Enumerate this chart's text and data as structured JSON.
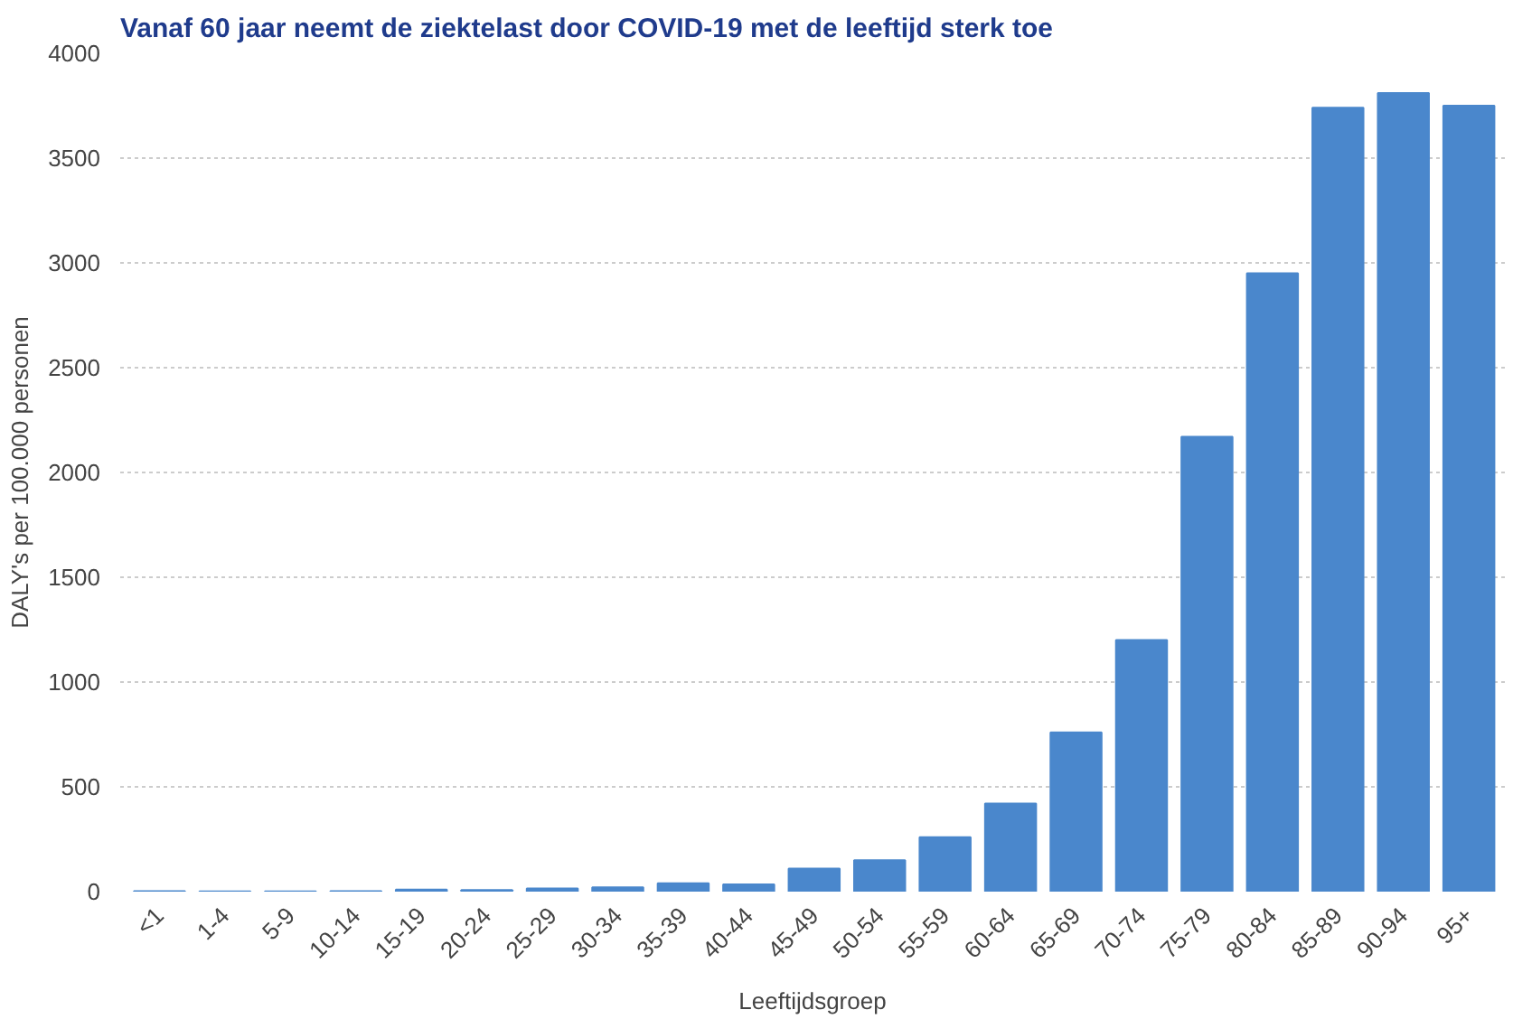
{
  "chart_data": {
    "type": "bar",
    "title": "Vanaf 60 jaar neemt de ziektelast door COVID-19 met de leeftijd sterk toe",
    "xlabel": "Leeftijdsgroep",
    "ylabel": "DALY's per 100.000 personen",
    "categories": [
      "<1",
      "1-4",
      "5-9",
      "10-14",
      "15-19",
      "20-24",
      "25-29",
      "30-34",
      "35-39",
      "40-44",
      "45-49",
      "50-54",
      "55-59",
      "60-64",
      "65-69",
      "70-74",
      "75-79",
      "80-84",
      "85-89",
      "90-94",
      "95+"
    ],
    "values": [
      2,
      1,
      1,
      2,
      10,
      8,
      15,
      20,
      40,
      35,
      110,
      150,
      260,
      420,
      760,
      1200,
      2170,
      2950,
      3740,
      3810,
      3750
    ],
    "color": "#4a87cc",
    "ylim": [
      0,
      4000
    ],
    "yticks": [
      0,
      500,
      1000,
      1500,
      2000,
      2500,
      3000,
      3500,
      4000
    ],
    "grid": "y"
  }
}
